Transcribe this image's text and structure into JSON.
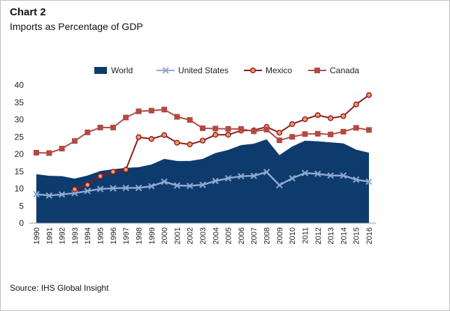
{
  "chart_data": {
    "type": "line",
    "title": "Chart 2",
    "subtitle": "Imports as Percentage of GDP",
    "xlabel": "",
    "ylabel": "",
    "ylim": [
      0,
      40
    ],
    "yticks": [
      0,
      5,
      10,
      15,
      20,
      25,
      30,
      35,
      40
    ],
    "legend_position": "top",
    "categories": [
      "1990",
      "1991",
      "1992",
      "1993",
      "1994",
      "1995",
      "1996",
      "1997",
      "1998",
      "1999",
      "2000",
      "2001",
      "2002",
      "2003",
      "2004",
      "2005",
      "2006",
      "2007",
      "2008",
      "2009",
      "2010",
      "2011",
      "2012",
      "2013",
      "2014",
      "2015",
      "2016"
    ],
    "series": [
      {
        "name": "World",
        "kind": "area",
        "color": "#0d3b6e",
        "values": [
          14.2,
          13.7,
          13.6,
          12.9,
          13.8,
          15.1,
          15.6,
          16.0,
          16.2,
          17.0,
          18.6,
          18.0,
          18.0,
          18.6,
          20.3,
          21.2,
          22.6,
          23.0,
          24.3,
          19.7,
          22.2,
          23.9,
          23.7,
          23.4,
          23.1,
          21.3,
          20.4
        ]
      },
      {
        "name": "United States",
        "kind": "line-x",
        "color": "#8fa9d0",
        "values": [
          8.4,
          8.0,
          8.3,
          8.7,
          9.3,
          9.9,
          10.1,
          10.2,
          10.2,
          10.7,
          12.0,
          10.9,
          10.8,
          11.1,
          12.2,
          13.0,
          13.6,
          13.7,
          14.8,
          11.0,
          13.0,
          14.5,
          14.3,
          13.8,
          13.8,
          12.6,
          12.0
        ]
      },
      {
        "name": "Mexico",
        "kind": "line-circle",
        "color": "#8b1a1a",
        "marker_fill": "#f39a63",
        "values": [
          null,
          null,
          null,
          9.8,
          11.1,
          13.6,
          14.9,
          15.5,
          24.9,
          24.4,
          25.5,
          23.3,
          22.8,
          23.9,
          25.6,
          25.6,
          26.8,
          26.9,
          27.9,
          26.2,
          28.7,
          30.1,
          31.3,
          30.4,
          31.0,
          34.4,
          37.1
        ]
      },
      {
        "name": "Canada",
        "kind": "line-square",
        "color": "#b24a44",
        "values": [
          20.4,
          20.3,
          21.6,
          23.8,
          26.3,
          27.7,
          27.7,
          30.6,
          32.4,
          32.6,
          32.9,
          30.8,
          29.9,
          27.5,
          27.4,
          27.3,
          27.3,
          26.6,
          27.1,
          24.0,
          25.0,
          25.8,
          25.9,
          25.7,
          26.5,
          27.6,
          27.0
        ]
      }
    ]
  },
  "source": "Source: IHS Global Insight"
}
